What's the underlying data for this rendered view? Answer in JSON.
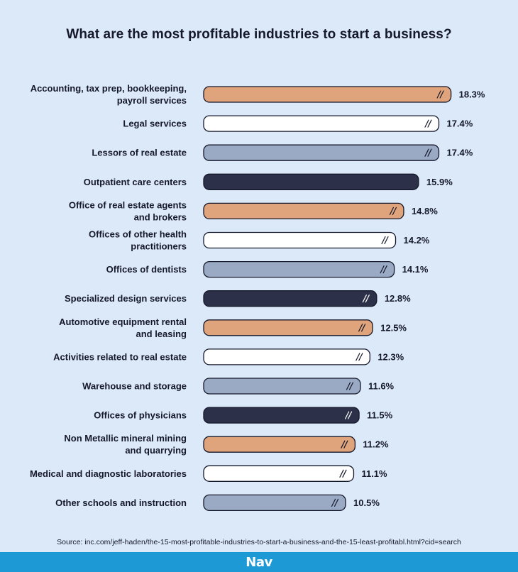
{
  "chart_data": {
    "type": "bar",
    "orientation": "horizontal",
    "title": "What are the most profitable industries to start a business?",
    "categories": [
      [
        "Accounting, tax prep, bookkeeping,",
        "payroll services"
      ],
      [
        "Legal services"
      ],
      [
        "Lessors of real estate"
      ],
      [
        "Outpatient care centers"
      ],
      [
        "Office of real estate agents",
        "and brokers"
      ],
      [
        "Offices of other health",
        "practitioners"
      ],
      [
        "Offices of dentists"
      ],
      [
        "Specialized design services"
      ],
      [
        "Automotive equipment rental",
        "and leasing"
      ],
      [
        "Activities related to real estate"
      ],
      [
        "Warehouse and storage"
      ],
      [
        "Offices of physicians"
      ],
      [
        "Non Metallic mineral mining",
        "and quarrying"
      ],
      [
        "Medical and diagnostic laboratories"
      ],
      [
        "Other schools and instruction"
      ]
    ],
    "values": [
      18.3,
      17.4,
      17.4,
      15.9,
      14.8,
      14.2,
      14.1,
      12.8,
      12.5,
      12.3,
      11.6,
      11.5,
      11.2,
      11.1,
      10.5
    ],
    "value_labels": [
      "18.3%",
      "17.4%",
      "17.4%",
      "15.9%",
      "14.8%",
      "14.2%",
      "14.1%",
      "12.8%",
      "12.5%",
      "12.3%",
      "11.6%",
      "11.5%",
      "11.2%",
      "11.1%",
      "10.5%"
    ],
    "bar_colors": [
      "#e0a47c",
      "#ffffff",
      "#9aaac4",
      "#2c3049",
      "#e0a47c",
      "#ffffff",
      "#9aaac4",
      "#2c3049",
      "#e0a47c",
      "#ffffff",
      "#9aaac4",
      "#2c3049",
      "#e0a47c",
      "#ffffff",
      "#9aaac4"
    ],
    "grid": false,
    "legend": "none"
  },
  "source_text": "Source: inc.com/jeff-haden/the-15-most-profitable-industries-to-start-a-business-and-the-15-least-profitabl.html?cid=search",
  "brand": {
    "logo_text": "Nav",
    "color": "#1d9ad6"
  }
}
